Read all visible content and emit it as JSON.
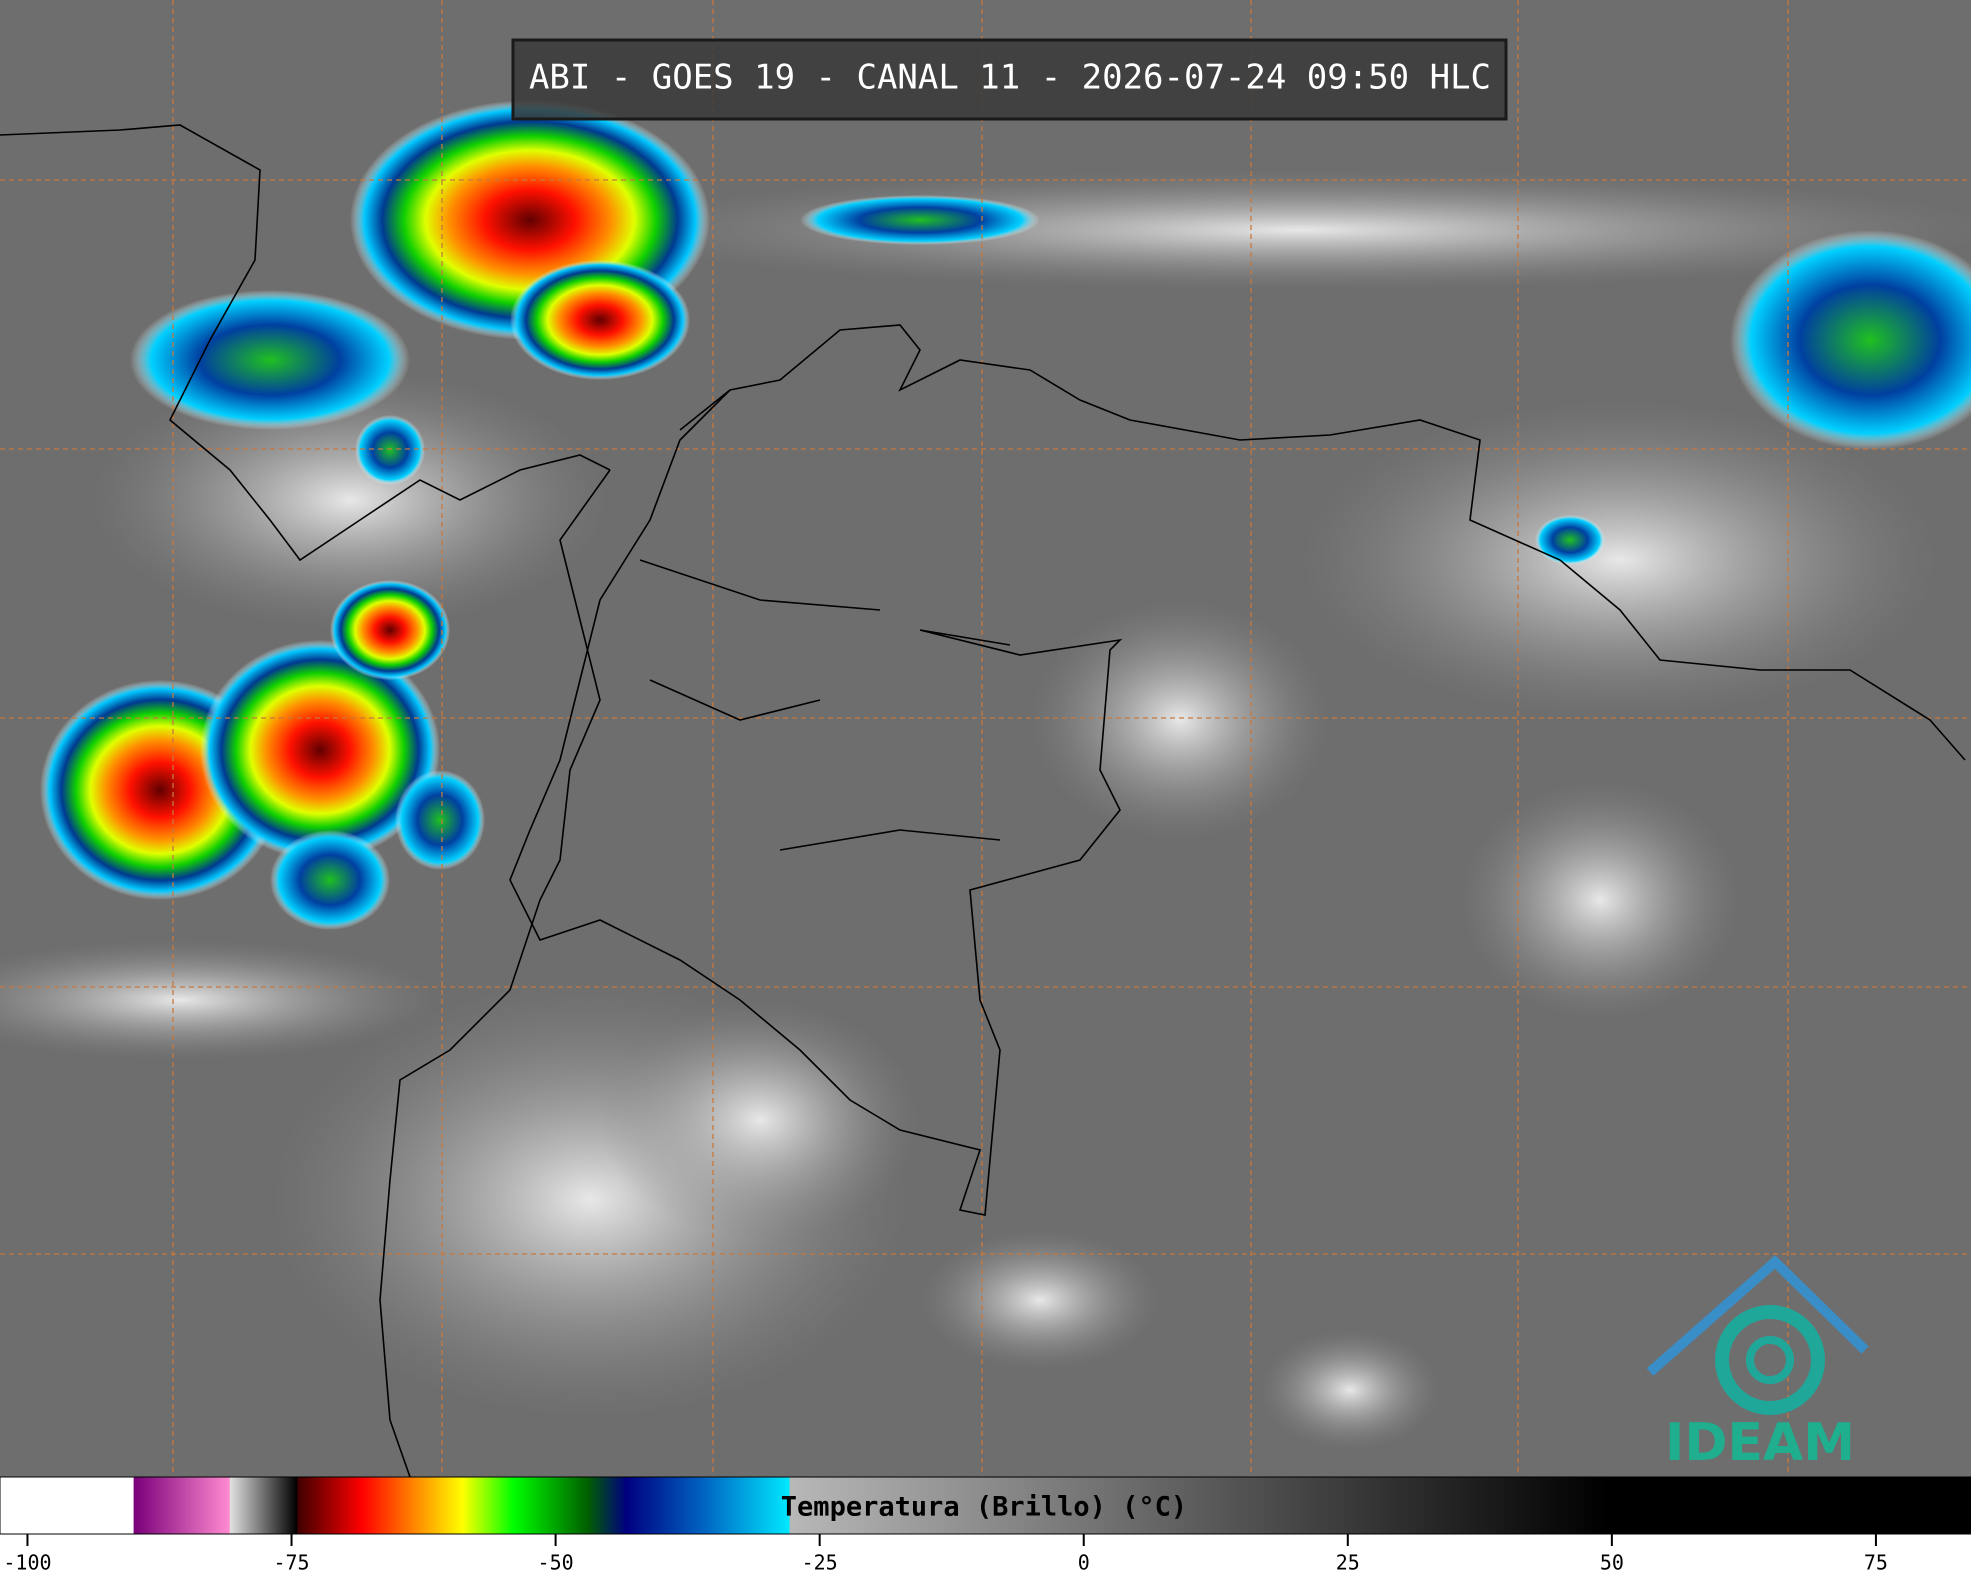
{
  "header": {
    "title": "ABI - GOES 19 - CANAL 11 - 2026-07-24 09:50 HLC"
  },
  "logo": {
    "text": "IDEAM"
  },
  "colorbar": {
    "label": "Temperatura (Brillo) (°C)",
    "lim": [
      -102.6,
      84
    ],
    "ticks": [
      -100,
      -75,
      -50,
      -25,
      0,
      25,
      50,
      75
    ],
    "stops": [
      {
        "value": -102.6,
        "color": "#ffffff"
      },
      {
        "value": -90,
        "color": "#ffffff"
      },
      {
        "value": -89.9,
        "color": "#7a007a"
      },
      {
        "value": -80.9,
        "color": "#ff8ad0"
      },
      {
        "value": -80.8,
        "color": "#e0e0e0"
      },
      {
        "value": -74.5,
        "color": "#000000"
      },
      {
        "value": -74.4,
        "color": "#400000"
      },
      {
        "value": -68.3,
        "color": "#ff0000"
      },
      {
        "value": -63.6,
        "color": "#ff8000"
      },
      {
        "value": -58.8,
        "color": "#ffff00"
      },
      {
        "value": -54,
        "color": "#00ff00"
      },
      {
        "value": -47,
        "color": "#006000"
      },
      {
        "value": -43.3,
        "color": "#000080"
      },
      {
        "value": -36.2,
        "color": "#0060c0"
      },
      {
        "value": -27.9,
        "color": "#00e8ff"
      },
      {
        "value": -27.8,
        "color": "#b8b8b8"
      },
      {
        "value": 49.5,
        "color": "#000000"
      },
      {
        "value": 84,
        "color": "#000000"
      }
    ]
  }
}
